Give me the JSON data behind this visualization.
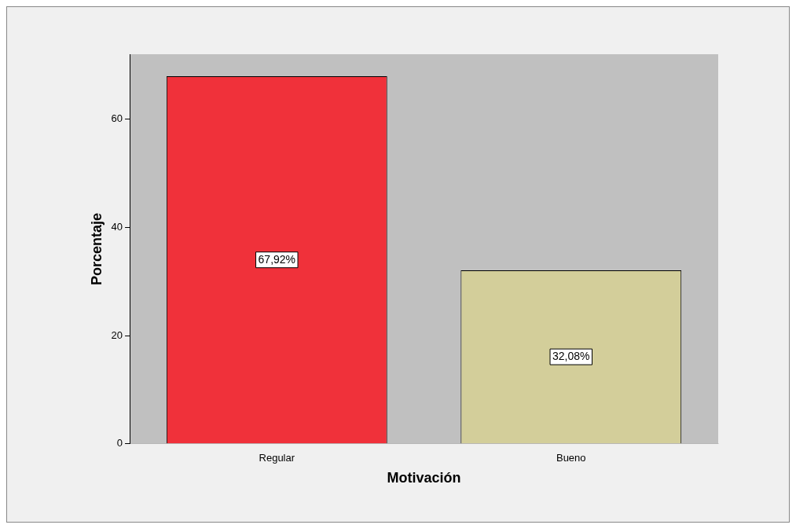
{
  "chart_data": {
    "type": "bar",
    "xlabel": "Motivación",
    "ylabel": "Porcentaje",
    "categories": [
      "Regular",
      "Bueno"
    ],
    "values": [
      67.92,
      32.08
    ],
    "colors": [
      "#f0313a",
      "#d3ce9a"
    ],
    "value_labels": [
      "67,92%",
      "32,08%"
    ],
    "ylim": [
      0,
      72
    ],
    "yticks": [
      0,
      20,
      40,
      60
    ],
    "grid": false,
    "legend": false
  }
}
